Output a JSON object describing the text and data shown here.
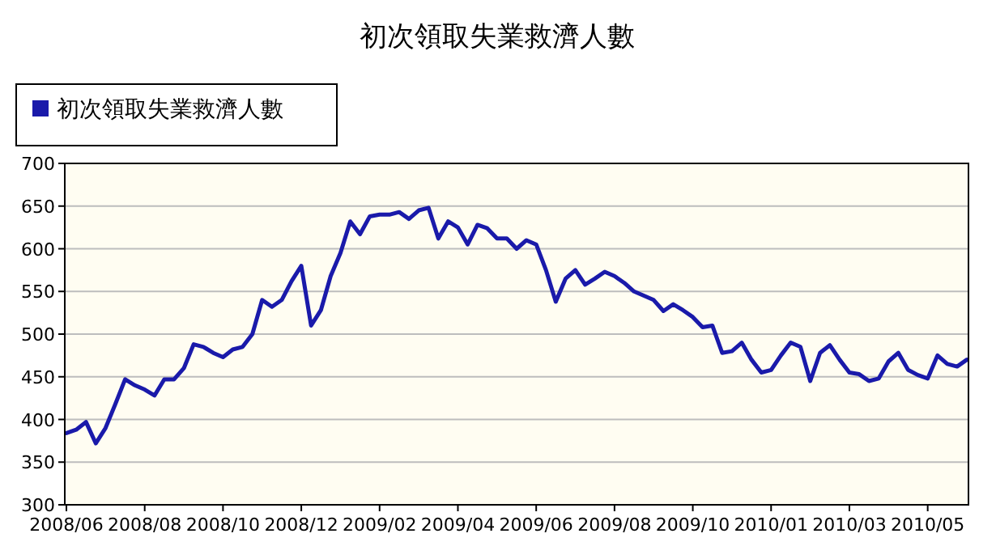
{
  "chart_data": {
    "type": "line",
    "title": "初次領取失業救濟人數",
    "categories": [
      "2008/06",
      null,
      null,
      null,
      null,
      null,
      null,
      null,
      "2008/08",
      null,
      null,
      null,
      null,
      null,
      null,
      null,
      "2008/10",
      null,
      null,
      null,
      null,
      null,
      null,
      null,
      "2008/12",
      null,
      null,
      null,
      null,
      null,
      null,
      null,
      "2009/02",
      null,
      null,
      null,
      null,
      null,
      null,
      null,
      "2009/04",
      null,
      null,
      null,
      null,
      null,
      null,
      null,
      "2009/06",
      null,
      null,
      null,
      null,
      null,
      null,
      null,
      "2009/08",
      null,
      null,
      null,
      null,
      null,
      null,
      null,
      "2009/10",
      null,
      null,
      null,
      null,
      null,
      null,
      null,
      "2010/01",
      null,
      null,
      null,
      null,
      null,
      null,
      null,
      "2010/03",
      null,
      null,
      null,
      null,
      null,
      null,
      null,
      "2010/05",
      null,
      null,
      null,
      null
    ],
    "series": [
      {
        "name": "初次領取失業救濟人數",
        "color": "#1a1aaa",
        "values": [
          384,
          388,
          397,
          372,
          390,
          418,
          447,
          440,
          435,
          428,
          447,
          447,
          460,
          488,
          485,
          478,
          473,
          482,
          485,
          500,
          540,
          532,
          540,
          562,
          580,
          510,
          528,
          568,
          595,
          632,
          617,
          638,
          640,
          640,
          643,
          635,
          645,
          648,
          612,
          632,
          625,
          605,
          628,
          624,
          612,
          612,
          600,
          610,
          605,
          575,
          538,
          565,
          575,
          558,
          565,
          573,
          568,
          560,
          550,
          545,
          540,
          527,
          535,
          528,
          520,
          508,
          510,
          478,
          480,
          490,
          470,
          455,
          458,
          475,
          490,
          485,
          445,
          478,
          487,
          470,
          455,
          453,
          445,
          448,
          468,
          478,
          458,
          452,
          448,
          475,
          465,
          462,
          470
        ]
      }
    ],
    "ylim": [
      300,
      700
    ],
    "yticks": [
      300,
      350,
      400,
      450,
      500,
      550,
      600,
      650,
      700
    ],
    "grid": "y",
    "legend": "top left"
  }
}
